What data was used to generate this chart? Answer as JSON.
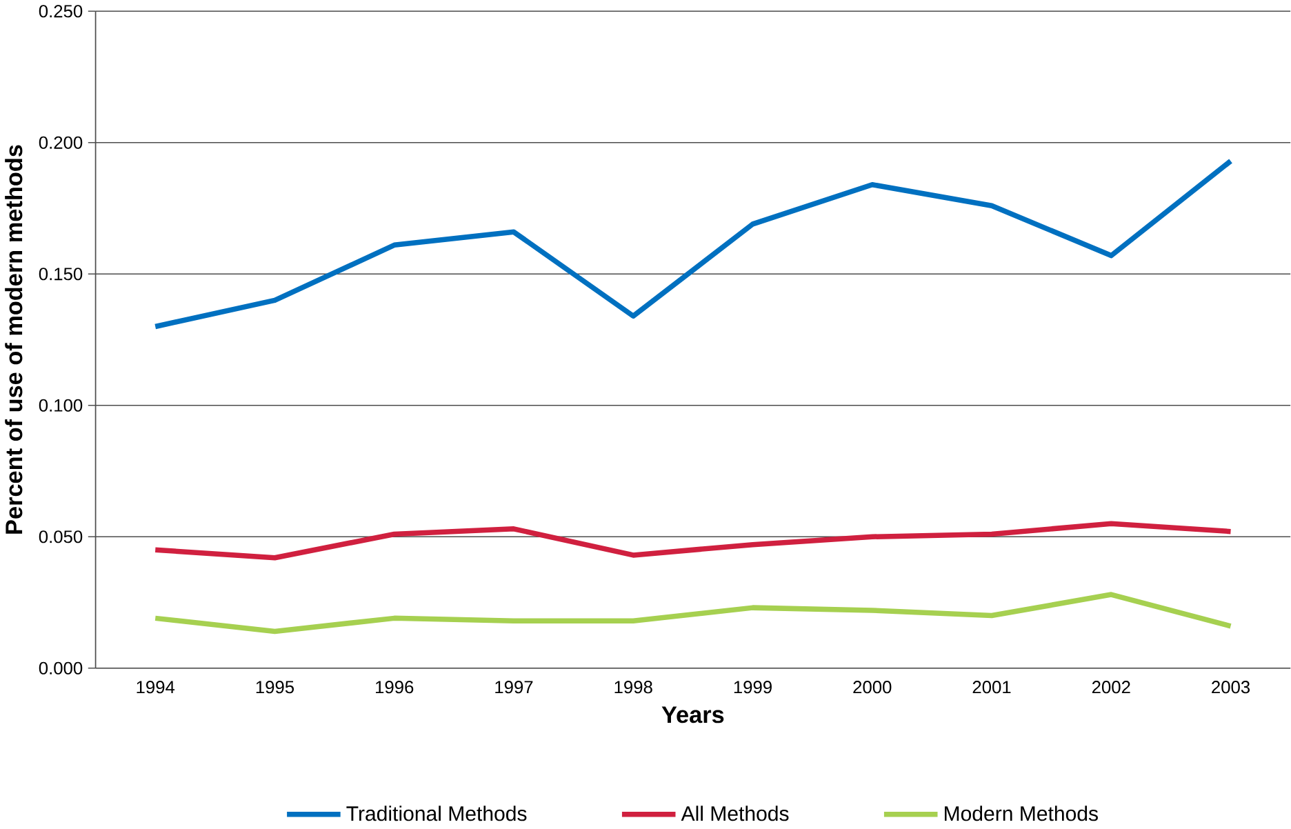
{
  "chart_data": {
    "type": "line",
    "xlabel": "Years",
    "ylabel": "Percent of use of modern methods",
    "categories": [
      "1994",
      "1995",
      "1996",
      "1997",
      "1998",
      "1999",
      "2000",
      "2001",
      "2002",
      "2003"
    ],
    "series": [
      {
        "name": "Traditional Methods",
        "color": "#0070c0",
        "values": [
          0.13,
          0.14,
          0.161,
          0.166,
          0.134,
          0.169,
          0.184,
          0.176,
          0.157,
          0.193
        ]
      },
      {
        "name": "All Methods",
        "color": "#d0203f",
        "values": [
          0.045,
          0.042,
          0.051,
          0.053,
          0.043,
          0.047,
          0.05,
          0.051,
          0.055,
          0.052
        ]
      },
      {
        "name": "Modern Methods",
        "color": "#a6d050",
        "values": [
          0.019,
          0.014,
          0.019,
          0.018,
          0.018,
          0.023,
          0.022,
          0.02,
          0.028,
          0.016
        ]
      }
    ],
    "ylim": [
      0,
      0.25
    ],
    "yticks": [
      {
        "value": 0,
        "label": "0.000"
      },
      {
        "value": 0.05,
        "label": "0.050"
      },
      {
        "value": 0.1,
        "label": "0.100"
      },
      {
        "value": 0.15,
        "label": "0.150"
      },
      {
        "value": 0.2,
        "label": "0.200"
      },
      {
        "value": 0.25,
        "label": "0.250"
      }
    ],
    "grid": "y",
    "legend": "bottom",
    "marker": "none",
    "line_style": "solid"
  }
}
